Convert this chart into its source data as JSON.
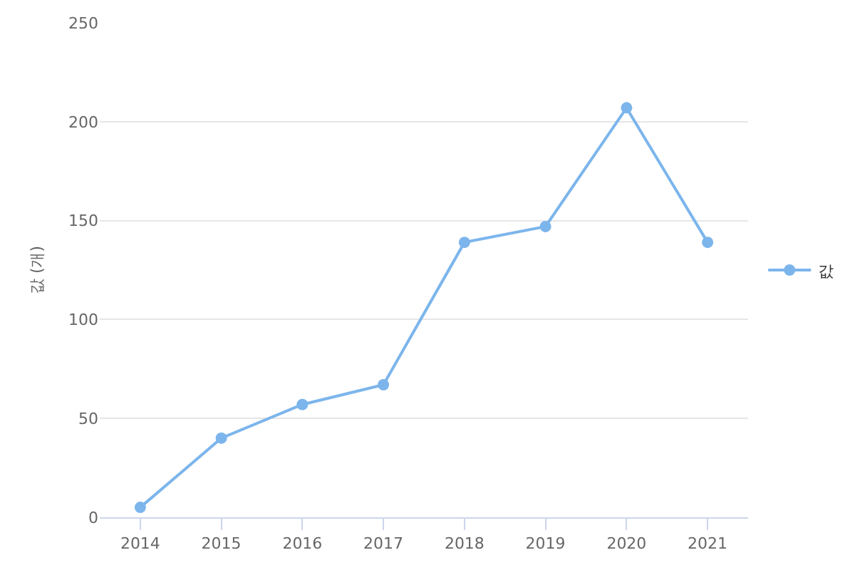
{
  "chart_data": {
    "type": "line",
    "ylabel": "값 (개)",
    "categories": [
      "2014",
      "2015",
      "2016",
      "2017",
      "2018",
      "2019",
      "2020",
      "2021"
    ],
    "series": [
      {
        "name": "값",
        "color": "#7cb5ec",
        "values": [
          5,
          40,
          57,
          67,
          139,
          147,
          207,
          139
        ]
      }
    ],
    "ylim": [
      0,
      250
    ],
    "yticks": [
      0,
      50,
      100,
      150,
      200,
      250
    ],
    "grid": "y",
    "legend": "right",
    "marker": "circle",
    "line_style": "solid"
  }
}
